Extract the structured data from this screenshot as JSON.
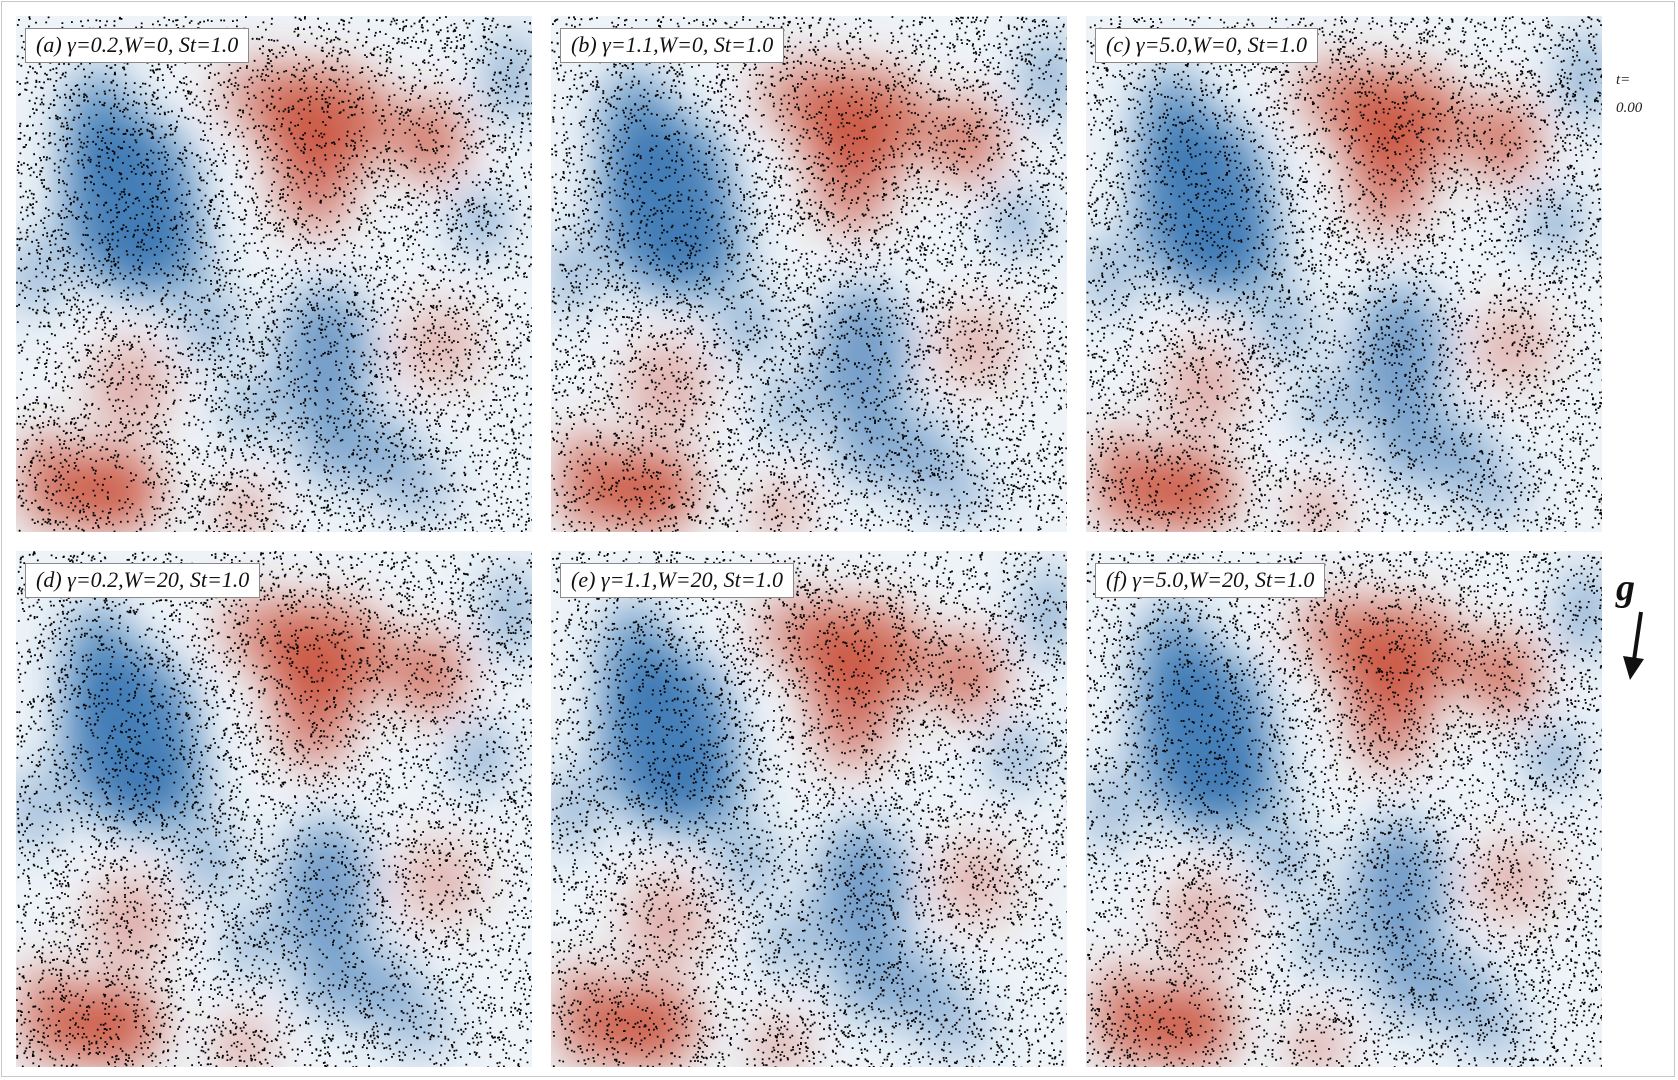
{
  "panels": [
    {
      "label": "(a) γ=0.2,W=0, St=1.0"
    },
    {
      "label": "(b) γ=1.1,W=0, St=1.0"
    },
    {
      "label": "(c) γ=5.0,W=0, St=1.0"
    },
    {
      "label": "(d) γ=0.2,W=20, St=1.0"
    },
    {
      "label": "(e) γ=1.1,W=20, St=1.0"
    },
    {
      "label": "(f) γ=5.0,W=20, St=1.0"
    }
  ],
  "time": {
    "prefix": "t=",
    "value": "0.00"
  },
  "gravity": {
    "symbol": "g",
    "icon": "arrow-down-icon"
  },
  "colors": {
    "positive": "#c8462f",
    "negative": "#2f6fae",
    "neutral": "#eef3f8",
    "particles": "#000000"
  }
}
